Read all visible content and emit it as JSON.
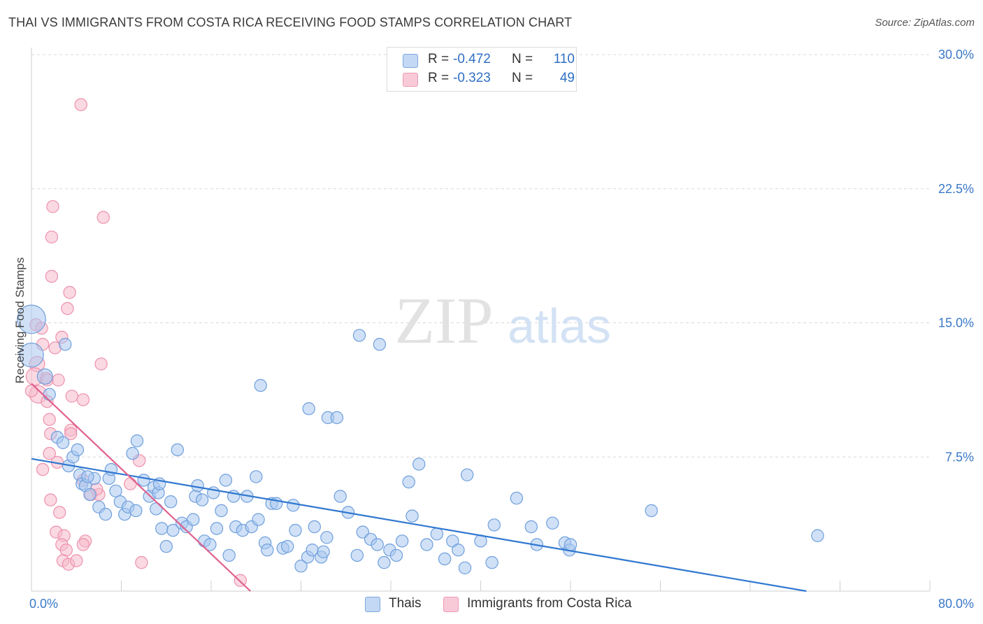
{
  "title": "THAI VS IMMIGRANTS FROM COSTA RICA RECEIVING FOOD STAMPS CORRELATION CHART",
  "source": "Source: ZipAtlas.com",
  "watermark": {
    "zip": "ZIP",
    "atlas": "atlas"
  },
  "colors": {
    "blue_fill": "#a9c8f0",
    "blue_stroke": "#6f9fdc",
    "blue_line": "#2f77d0",
    "pink_fill": "#f6b9cb",
    "pink_stroke": "#ee91ad",
    "pink_line": "#e0608e",
    "grid": "#d8d8d8",
    "tick_text": "#3a78c8"
  },
  "legend": {
    "rows": [
      {
        "r_label": "R =",
        "r_value": "-0.472",
        "n_label": "N =",
        "n_value": "110"
      },
      {
        "r_label": "R =",
        "r_value": "-0.323",
        "n_label": "N =",
        "n_value": "49"
      }
    ]
  },
  "bottom_legend": {
    "series1": "Thais",
    "series2": "Immigrants from Costa Rica"
  },
  "chart_data": {
    "type": "scatter",
    "title": "THAI VS IMMIGRANTS FROM COSTA RICA RECEIVING FOOD STAMPS CORRELATION CHART",
    "xlabel": "",
    "ylabel": "Receiving Food Stamps",
    "xlim": [
      0,
      80
    ],
    "ylim": [
      0,
      30
    ],
    "x_tick_labels": [
      "0.0%",
      "80.0%"
    ],
    "y_ticks": [
      7.5,
      15.0,
      22.5,
      30.0
    ],
    "y_tick_labels": [
      "7.5%",
      "15.0%",
      "22.5%",
      "30.0%"
    ],
    "grid": true,
    "legend_position": "top-center",
    "series": [
      {
        "name": "Thais",
        "r": -0.472,
        "n": 110,
        "trend": {
          "x": [
            0,
            69
          ],
          "y": [
            7.4,
            0
          ]
        },
        "points": [
          [
            0.0,
            15.2,
            26
          ],
          [
            0.0,
            13.2,
            22
          ],
          [
            1.2,
            12.0,
            14
          ],
          [
            1.6,
            11.0,
            12
          ],
          [
            3.0,
            13.8,
            12
          ],
          [
            2.3,
            8.6,
            12
          ],
          [
            2.8,
            8.3,
            12
          ],
          [
            3.3,
            7.0,
            12
          ],
          [
            3.7,
            7.5,
            12
          ],
          [
            4.3,
            6.5,
            12
          ],
          [
            4.1,
            7.9,
            12
          ],
          [
            4.5,
            6.0,
            12
          ],
          [
            4.8,
            5.9,
            12
          ],
          [
            5.6,
            6.3,
            12
          ],
          [
            5.2,
            5.4,
            12
          ],
          [
            6.0,
            4.7,
            12
          ],
          [
            6.6,
            4.3,
            12
          ],
          [
            6.9,
            6.3,
            12
          ],
          [
            7.5,
            5.6,
            12
          ],
          [
            7.9,
            5.0,
            12
          ],
          [
            8.3,
            4.3,
            12
          ],
          [
            8.6,
            4.7,
            12
          ],
          [
            9.4,
            8.4,
            12
          ],
          [
            9.0,
            7.7,
            12
          ],
          [
            10.0,
            6.2,
            12
          ],
          [
            10.5,
            5.3,
            12
          ],
          [
            10.9,
            5.8,
            12
          ],
          [
            11.3,
            5.5,
            12
          ],
          [
            11.1,
            4.6,
            12
          ],
          [
            11.6,
            3.5,
            12
          ],
          [
            12.4,
            5.0,
            12
          ],
          [
            12.6,
            3.4,
            12
          ],
          [
            12.0,
            2.5,
            12
          ],
          [
            13.0,
            7.9,
            12
          ],
          [
            13.4,
            3.8,
            12
          ],
          [
            13.8,
            3.6,
            12
          ],
          [
            14.4,
            4.0,
            12
          ],
          [
            14.6,
            5.3,
            12
          ],
          [
            15.2,
            5.1,
            12
          ],
          [
            15.4,
            2.8,
            12
          ],
          [
            15.9,
            2.6,
            12
          ],
          [
            16.2,
            5.5,
            12
          ],
          [
            16.5,
            3.5,
            12
          ],
          [
            16.9,
            4.5,
            12
          ],
          [
            17.3,
            6.2,
            12
          ],
          [
            17.6,
            2.0,
            12
          ],
          [
            18.0,
            5.3,
            12
          ],
          [
            18.2,
            3.6,
            12
          ],
          [
            18.8,
            3.4,
            12
          ],
          [
            19.2,
            5.3,
            12
          ],
          [
            19.6,
            3.6,
            12
          ],
          [
            20.2,
            4.0,
            12
          ],
          [
            20.8,
            2.7,
            12
          ],
          [
            20.0,
            6.4,
            12
          ],
          [
            21.0,
            2.3,
            12
          ],
          [
            21.4,
            4.9,
            12
          ],
          [
            21.8,
            4.9,
            12
          ],
          [
            22.4,
            2.4,
            12
          ],
          [
            22.8,
            2.5,
            12
          ],
          [
            23.3,
            4.8,
            12
          ],
          [
            23.5,
            3.4,
            12
          ],
          [
            24.0,
            1.4,
            12
          ],
          [
            24.6,
            1.9,
            12
          ],
          [
            25.0,
            2.3,
            12
          ],
          [
            25.8,
            1.9,
            12
          ],
          [
            25.2,
            3.6,
            12
          ],
          [
            26.0,
            2.2,
            12
          ],
          [
            26.3,
            3.0,
            12
          ],
          [
            27.5,
            5.3,
            12
          ],
          [
            28.2,
            4.4,
            12
          ],
          [
            29.0,
            2.0,
            12
          ],
          [
            29.5,
            3.3,
            12
          ],
          [
            30.2,
            2.9,
            12
          ],
          [
            30.8,
            2.6,
            12
          ],
          [
            31.4,
            1.6,
            12
          ],
          [
            31.9,
            2.3,
            12
          ],
          [
            32.5,
            2.0,
            12
          ],
          [
            33.0,
            2.8,
            12
          ],
          [
            33.9,
            4.2,
            12
          ],
          [
            33.6,
            6.1,
            12
          ],
          [
            34.5,
            7.1,
            12
          ],
          [
            35.2,
            2.6,
            12
          ],
          [
            36.1,
            3.2,
            12
          ],
          [
            36.8,
            1.8,
            12
          ],
          [
            37.5,
            2.8,
            12
          ],
          [
            38.0,
            2.3,
            12
          ],
          [
            38.8,
            6.5,
            12
          ],
          [
            38.6,
            1.3,
            12
          ],
          [
            40.0,
            2.8,
            12
          ],
          [
            41.2,
            3.7,
            12
          ],
          [
            41.0,
            1.6,
            12
          ],
          [
            43.2,
            5.2,
            12
          ],
          [
            44.5,
            3.6,
            12
          ],
          [
            45.0,
            2.6,
            12
          ],
          [
            46.4,
            3.8,
            12
          ],
          [
            47.5,
            2.7,
            12
          ],
          [
            47.9,
            2.3,
            12
          ],
          [
            48.0,
            2.6,
            12
          ],
          [
            55.2,
            4.5,
            12
          ],
          [
            70.0,
            3.1,
            12
          ],
          [
            11.4,
            6.0,
            12
          ],
          [
            14.8,
            5.9,
            12
          ],
          [
            24.7,
            10.2,
            12
          ],
          [
            26.4,
            9.7,
            12
          ],
          [
            27.2,
            9.7,
            12
          ],
          [
            20.4,
            11.5,
            12
          ],
          [
            29.2,
            14.3,
            12
          ],
          [
            31.0,
            13.8,
            12
          ],
          [
            7.1,
            6.8,
            12
          ],
          [
            5.0,
            6.4,
            12
          ],
          [
            9.3,
            4.5,
            12
          ]
        ]
      },
      {
        "name": "Immigrants from Costa Rica",
        "r": -0.323,
        "n": 49,
        "trend": {
          "x": [
            0,
            19.5
          ],
          "y": [
            11.6,
            0
          ]
        },
        "points": [
          [
            4.4,
            27.2,
            12
          ],
          [
            1.9,
            21.5,
            12
          ],
          [
            6.4,
            20.9,
            12
          ],
          [
            1.8,
            19.8,
            12
          ],
          [
            1.8,
            17.6,
            12
          ],
          [
            3.4,
            16.7,
            12
          ],
          [
            3.2,
            15.8,
            12
          ],
          [
            0.4,
            14.9,
            12
          ],
          [
            0.9,
            14.7,
            12
          ],
          [
            2.7,
            14.2,
            12
          ],
          [
            1.0,
            13.8,
            12
          ],
          [
            2.1,
            13.6,
            12
          ],
          [
            6.2,
            12.7,
            12
          ],
          [
            0.5,
            12.7,
            14
          ],
          [
            0.3,
            12.0,
            16
          ],
          [
            1.3,
            11.9,
            12
          ],
          [
            1.4,
            11.8,
            12
          ],
          [
            2.4,
            11.8,
            12
          ],
          [
            0.6,
            11.0,
            16
          ],
          [
            1.4,
            10.6,
            12
          ],
          [
            3.6,
            10.9,
            12
          ],
          [
            4.6,
            10.7,
            12
          ],
          [
            1.6,
            9.6,
            12
          ],
          [
            3.5,
            9.0,
            12
          ],
          [
            1.7,
            8.8,
            12
          ],
          [
            3.5,
            8.8,
            12
          ],
          [
            1.6,
            7.7,
            12
          ],
          [
            2.3,
            7.2,
            12
          ],
          [
            9.6,
            7.3,
            12
          ],
          [
            1.0,
            6.8,
            12
          ],
          [
            4.6,
            6.2,
            12
          ],
          [
            5.3,
            5.4,
            12
          ],
          [
            6.0,
            5.4,
            12
          ],
          [
            1.7,
            5.1,
            12
          ],
          [
            2.5,
            4.4,
            12
          ],
          [
            2.2,
            3.3,
            12
          ],
          [
            2.9,
            3.1,
            12
          ],
          [
            2.7,
            2.6,
            12
          ],
          [
            3.1,
            2.3,
            12
          ],
          [
            4.8,
            2.8,
            12
          ],
          [
            4.6,
            2.6,
            12
          ],
          [
            2.8,
            1.7,
            12
          ],
          [
            3.3,
            1.5,
            12
          ],
          [
            4.0,
            1.7,
            12
          ],
          [
            9.8,
            1.6,
            12
          ],
          [
            18.6,
            0.6,
            12
          ],
          [
            5.8,
            5.7,
            12
          ],
          [
            8.8,
            6.0,
            12
          ],
          [
            0.0,
            11.2,
            12
          ]
        ]
      }
    ]
  }
}
